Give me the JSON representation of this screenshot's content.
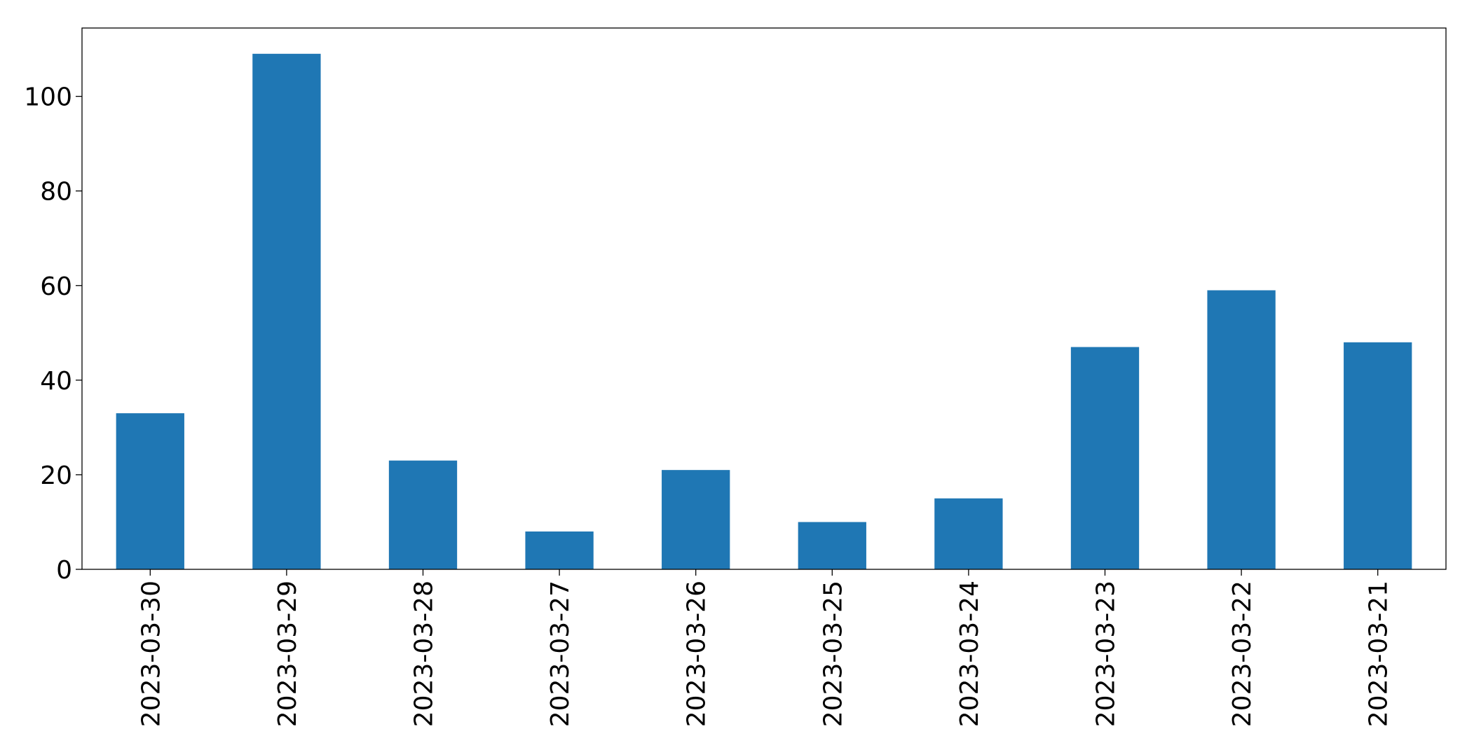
{
  "chart_data": {
    "type": "bar",
    "categories": [
      "2023-03-30",
      "2023-03-29",
      "2023-03-28",
      "2023-03-27",
      "2023-03-26",
      "2023-03-25",
      "2023-03-24",
      "2023-03-23",
      "2023-03-22",
      "2023-03-21"
    ],
    "values": [
      33,
      109,
      23,
      8,
      21,
      10,
      15,
      47,
      59,
      48
    ],
    "color": "#1f77b4",
    "ylim": [
      0,
      114.45
    ],
    "yticks": [
      0,
      20,
      40,
      60,
      80,
      100
    ],
    "grid": false
  }
}
